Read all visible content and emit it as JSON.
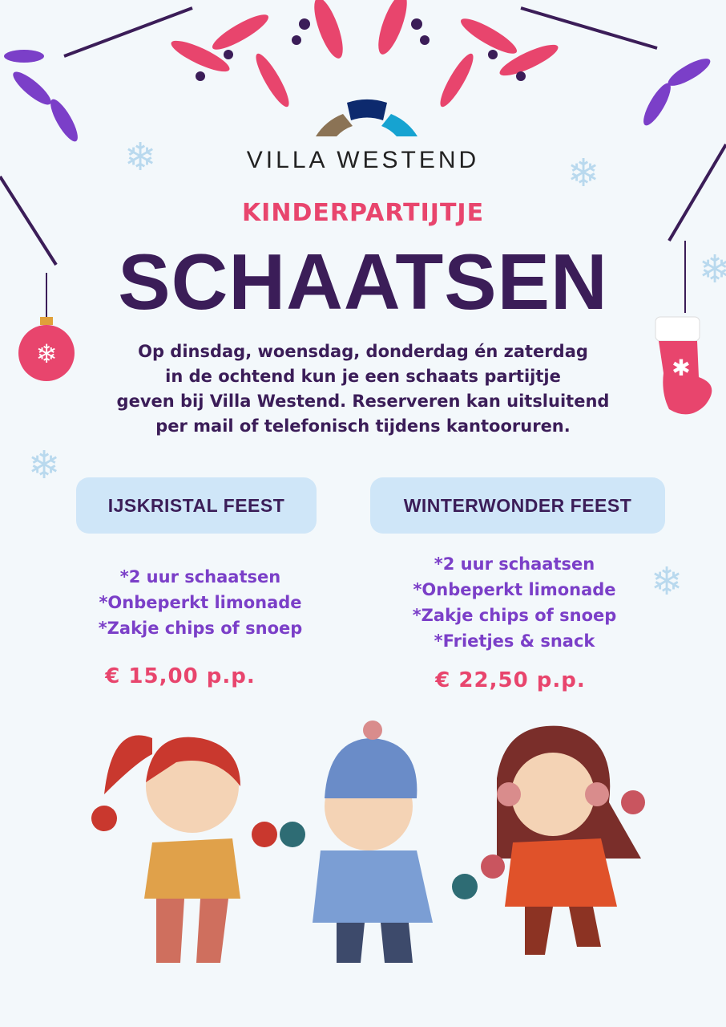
{
  "logo": {
    "name": "Villa Westend",
    "colors": [
      "#8b7355",
      "#0d2a6e",
      "#16a3d1"
    ]
  },
  "subtitle": "KINDERPARTIJTJE",
  "title": "SCHAATSEN",
  "intro": [
    "Op dinsdag, woensdag, donderdag én zaterdag",
    "in de ochtend kun je een schaats partijtje",
    "geven bij Villa Westend. Reserveren kan uitsluitend",
    "per mail of telefonisch tijdens kantooruren."
  ],
  "packages": [
    {
      "name": "IJSKRISTAL FEEST",
      "items": [
        "*2 uur schaatsen",
        "*Onbeperkt limonade",
        "*Zakje chips of snoep"
      ],
      "price": "€ 15,00 p.p."
    },
    {
      "name": "WINTERWONDER FEEST",
      "items": [
        "*2 uur schaatsen",
        "*Onbeperkt limonade",
        "*Zakje chips of snoep",
        "*Frietjes & snack"
      ],
      "price": "€ 22,50 p.p."
    }
  ],
  "colors": {
    "background": "#f3f8fb",
    "title": "#3b1d58",
    "accent": "#e8456d",
    "list": "#7b3fc8",
    "box": "#cfe6f8"
  }
}
